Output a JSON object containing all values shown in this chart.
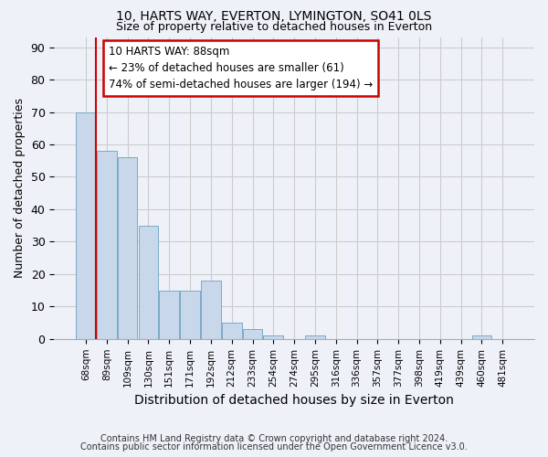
{
  "title1": "10, HARTS WAY, EVERTON, LYMINGTON, SO41 0LS",
  "title2": "Size of property relative to detached houses in Everton",
  "xlabel": "Distribution of detached houses by size in Everton",
  "ylabel": "Number of detached properties",
  "categories": [
    "68sqm",
    "89sqm",
    "109sqm",
    "130sqm",
    "151sqm",
    "171sqm",
    "192sqm",
    "212sqm",
    "233sqm",
    "254sqm",
    "274sqm",
    "295sqm",
    "316sqm",
    "336sqm",
    "357sqm",
    "377sqm",
    "398sqm",
    "419sqm",
    "439sqm",
    "460sqm",
    "481sqm"
  ],
  "values": [
    70,
    58,
    56,
    35,
    15,
    15,
    18,
    5,
    3,
    1,
    0,
    1,
    0,
    0,
    0,
    0,
    0,
    0,
    0,
    1,
    0
  ],
  "bar_color": "#c8d8ea",
  "bar_edge_color": "#7aaac8",
  "bg_color": "#eef2f8",
  "grid_color": "#cccccc",
  "red_line_x": 0.5,
  "annotation_line1": "10 HARTS WAY: 88sqm",
  "annotation_line2": "← 23% of detached houses are smaller (61)",
  "annotation_line3": "74% of semi-detached houses are larger (194) →",
  "annotation_box_color": "white",
  "annotation_border_color": "#cc0000",
  "ylim": [
    0,
    93
  ],
  "yticks": [
    0,
    10,
    20,
    30,
    40,
    50,
    60,
    70,
    80,
    90
  ],
  "footer1": "Contains HM Land Registry data © Crown copyright and database right 2024.",
  "footer2": "Contains public sector information licensed under the Open Government Licence v3.0."
}
